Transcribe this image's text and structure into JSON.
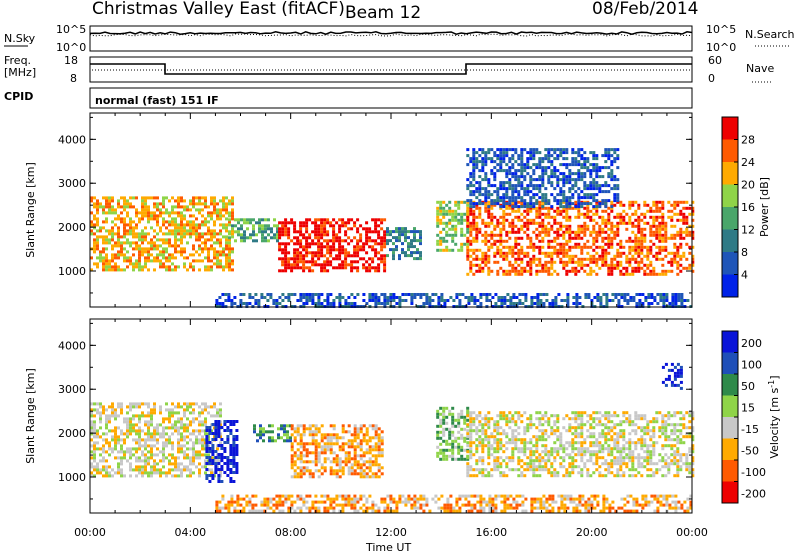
{
  "header": {
    "station": "Christmas Valley East (fitACF)",
    "beam": "Beam 12",
    "date": "08/Feb/2014"
  },
  "panels": {
    "nsky": {
      "label": "N.Sky",
      "right_label": "N.Search",
      "ticks": [
        "10^5",
        "10^0"
      ],
      "right_ticks": [
        "10^5",
        "10^0"
      ]
    },
    "freq": {
      "label_1": "Freq.",
      "label_2": "[MHz]",
      "ticks": [
        "18",
        "8"
      ],
      "right_label": "Nave",
      "right_ticks": [
        "60",
        "0"
      ]
    },
    "cpid": {
      "label": "CPID",
      "mode": "normal (fast) 151 IF"
    }
  },
  "chart_data": [
    {
      "type": "heatmap",
      "title": "",
      "xlabel": "Time UT",
      "ylabel": "Slant Range [km]",
      "x_ticks": [
        "00:00",
        "04:00",
        "08:00",
        "12:00",
        "16:00",
        "20:00",
        "00:00"
      ],
      "y_ticks": [
        1000,
        2000,
        3000,
        4000
      ],
      "xlim": [
        0,
        24
      ],
      "ylim": [
        180,
        4600
      ],
      "colorbar": {
        "label": "Power [dB]",
        "ticks": [
          4,
          8,
          12,
          16,
          20,
          24,
          28
        ],
        "range": [
          0,
          32
        ],
        "colors": [
          "#0022e8",
          "#1f55b8",
          "#2f7a86",
          "#4aa66a",
          "#8fd448",
          "#ffaa00",
          "#ff5a00",
          "#ee0000"
        ]
      },
      "regions": [
        {
          "t": [
            0.0,
            5.7
          ],
          "r": [
            1000,
            2700
          ],
          "level": 5
        },
        {
          "t": [
            5.5,
            7.5
          ],
          "r": [
            1700,
            2200
          ],
          "level": 3
        },
        {
          "t": [
            7.5,
            11.7
          ],
          "r": [
            1000,
            2200
          ],
          "level": 7
        },
        {
          "t": [
            11.8,
            13.2
          ],
          "r": [
            1300,
            2000
          ],
          "level": 2
        },
        {
          "t": [
            13.8,
            15.0
          ],
          "r": [
            1500,
            2600
          ],
          "level": 4
        },
        {
          "t": [
            15.0,
            24.0
          ],
          "r": [
            900,
            2600
          ],
          "level": 6
        },
        {
          "t": [
            15.0,
            21.0
          ],
          "r": [
            2500,
            3800
          ],
          "level": 1
        },
        {
          "t": [
            5.0,
            24.0
          ],
          "r": [
            200,
            500
          ],
          "level": 1
        }
      ]
    },
    {
      "type": "heatmap",
      "title": "",
      "xlabel": "Time UT",
      "ylabel": "Slant Range [km]",
      "x_ticks": [
        "00:00",
        "04:00",
        "08:00",
        "12:00",
        "16:00",
        "20:00",
        "00:00"
      ],
      "y_ticks": [
        1000,
        2000,
        3000,
        4000
      ],
      "xlim": [
        0,
        24
      ],
      "ylim": [
        180,
        4600
      ],
      "colorbar": {
        "label_main": "Velocity [m s",
        "label_sup": "-1",
        "label_close": "]",
        "ticks": [
          200,
          100,
          50,
          15,
          -15,
          -50,
          -100,
          -200
        ],
        "range": [
          -250,
          250
        ],
        "colors": [
          "#ee0000",
          "#ff5a00",
          "#ffaa00",
          "#c8c8c8",
          "#8fd448",
          "#2f8a4a",
          "#1f4fb8",
          "#0a14d8"
        ]
      },
      "regions": [
        {
          "t": [
            0.0,
            5.2
          ],
          "r": [
            1000,
            2700
          ],
          "level": 3
        },
        {
          "t": [
            4.6,
            5.8
          ],
          "r": [
            900,
            2300
          ],
          "level": 7
        },
        {
          "t": [
            6.5,
            8.0
          ],
          "r": [
            1800,
            2200
          ],
          "level": 5
        },
        {
          "t": [
            8.0,
            11.7
          ],
          "r": [
            1000,
            2200
          ],
          "level": 2
        },
        {
          "t": [
            13.8,
            15.0
          ],
          "r": [
            1400,
            2600
          ],
          "level": 4
        },
        {
          "t": [
            15.0,
            24.0
          ],
          "r": [
            1000,
            2500
          ],
          "level": 3
        },
        {
          "t": [
            5.0,
            24.0
          ],
          "r": [
            200,
            600
          ],
          "level": 2
        },
        {
          "t": [
            22.8,
            23.6
          ],
          "r": [
            3000,
            3600
          ],
          "level": 7
        }
      ]
    }
  ]
}
